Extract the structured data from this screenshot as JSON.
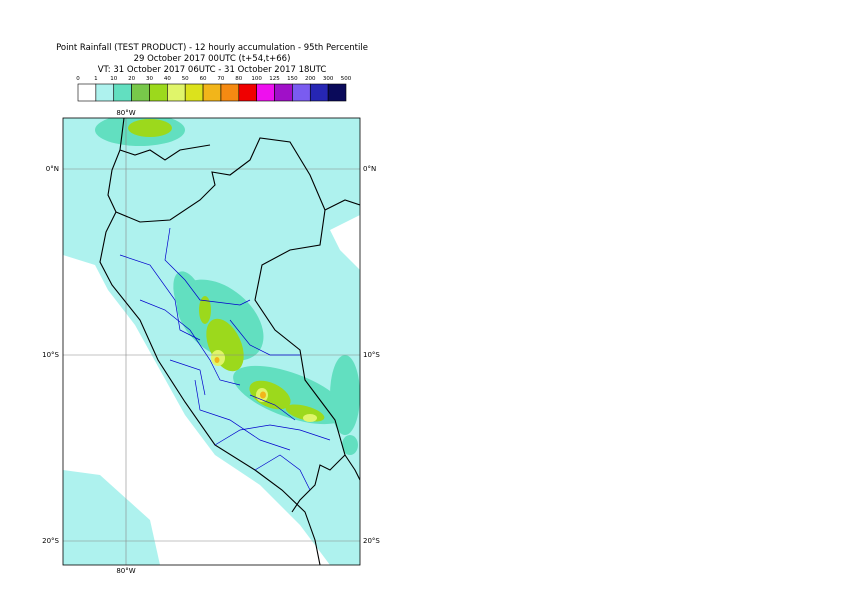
{
  "header": {
    "lines": [
      "Point Rainfall (TEST PRODUCT) - 12 hourly accumulation - 95th Percentile",
      "29 October 2017 00UTC (t+54,t+66)",
      "VT: 31 October 2017 06UTC - 31 October 2017 18UTC"
    ]
  },
  "legend": {
    "labels": [
      0,
      1,
      10,
      20,
      30,
      40,
      50,
      60,
      70,
      80,
      100,
      125,
      150,
      200,
      300,
      500
    ],
    "colors": [
      "#ffffff",
      "#aef2ee",
      "#62dfc0",
      "#78c84a",
      "#9cd91c",
      "#e0f56a",
      "#dce21c",
      "#f2b51a",
      "#f58a12",
      "#f00000",
      "#ee10ee",
      "#a010c8",
      "#7a5cf0",
      "#2626b4",
      "#0a0a5a"
    ]
  },
  "map": {
    "grid_labels": {
      "lon": "80°W",
      "lat": [
        "0°N",
        "10°S",
        "20°S"
      ]
    }
  }
}
